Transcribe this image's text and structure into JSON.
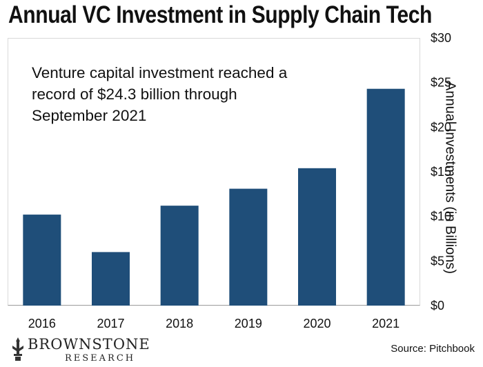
{
  "chart_data": {
    "type": "bar",
    "title": "Annual VC Investment in Supply Chain Tech",
    "annotation": "Venture capital investment reached a record of $24.3 billion through September 2021",
    "categories": [
      "2016",
      "2017",
      "2018",
      "2019",
      "2020",
      "2021"
    ],
    "values": [
      10.2,
      6.0,
      11.2,
      13.1,
      15.4,
      24.3
    ],
    "ylabel": "Annual Investments (in Billions)",
    "ylim": [
      0,
      30
    ],
    "yticks": [
      "$0",
      "$5",
      "$10",
      "$15",
      "$20",
      "$25",
      "$30"
    ],
    "y_axis_side": "right",
    "grid": false,
    "bar_color": "#1f4e79"
  },
  "source": "Source: Pitchbook",
  "logo": {
    "name": "BROWNSTONE",
    "sub": "RESEARCH"
  }
}
